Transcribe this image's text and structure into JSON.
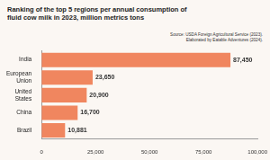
{
  "chart_data": {
    "type": "bar",
    "orientation": "horizontal",
    "title": "Ranking of the top 5 regions per annual consumption of fluid cow milk in 2023, million metrics tons",
    "annotations": [
      "Source: USDA Foreign Agricultural Service (2023).",
      "Elaborated by Eatable Adventures (2024)."
    ],
    "categories": [
      "India",
      "European Union",
      "United States",
      "China",
      "Brazil"
    ],
    "values": [
      87450,
      23650,
      20900,
      16700,
      10881
    ],
    "value_labels": [
      "87,450",
      "23,650",
      "20,900",
      "16,700",
      "10,881"
    ],
    "data_labels": true,
    "color": "#f0865f",
    "xlim": [
      0,
      100000
    ],
    "xticks": [
      0,
      {
        "value": 25000,
        "label": "25,000"
      },
      {
        "value": 50000,
        "label": "50,000"
      },
      {
        "value": 75000,
        "label": "75,000"
      },
      {
        "value": 100000,
        "label": "100,000"
      }
    ],
    "grid": false
  }
}
